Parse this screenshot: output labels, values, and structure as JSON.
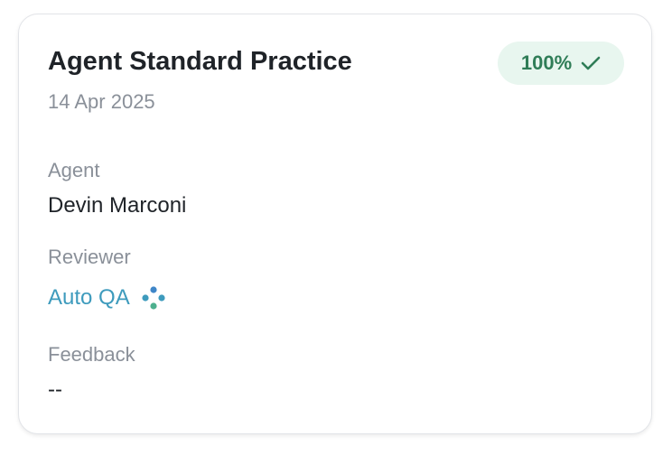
{
  "card": {
    "title": "Agent Standard Practice",
    "date": "14 Apr 2025",
    "score_badge": {
      "text": "100%",
      "icon": "check-icon",
      "color": "#2f7d57"
    },
    "agent": {
      "label": "Agent",
      "value": "Devin Marconi"
    },
    "reviewer": {
      "label": "Reviewer",
      "value": "Auto QA",
      "icon": "auto-qa-dots-icon"
    },
    "feedback": {
      "label": "Feedback",
      "value": "--"
    }
  }
}
